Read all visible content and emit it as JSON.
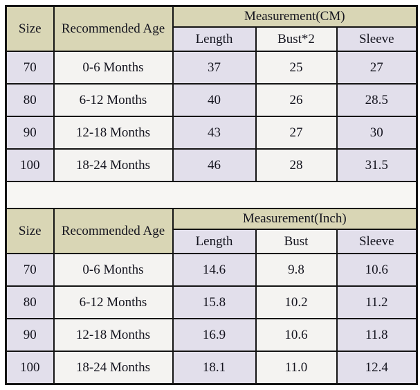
{
  "colors": {
    "header_bg": "#d9d6b5",
    "col_odd_bg": "#e2dfeb",
    "col_even_bg": "#f4f3f1",
    "gap_bg": "#f7f6f3",
    "border_color": "#141414",
    "text_color": "#14141e",
    "page_bg": "#ffffff"
  },
  "chart_data": [
    {
      "type": "table",
      "title": "Measurement(CM)",
      "header": {
        "size": "Size",
        "age": "Recommended Age",
        "measurement": "Measurement(CM)",
        "sub": [
          "Length",
          "Bust*2",
          "Sleeve"
        ]
      },
      "rows": [
        {
          "size": "70",
          "age": "0-6 Months",
          "values": [
            "37",
            "25",
            "27"
          ]
        },
        {
          "size": "80",
          "age": "6-12 Months",
          "values": [
            "40",
            "26",
            "28.5"
          ]
        },
        {
          "size": "90",
          "age": "12-18 Months",
          "values": [
            "43",
            "27",
            "30"
          ]
        },
        {
          "size": "100",
          "age": "18-24 Months",
          "values": [
            "46",
            "28",
            "31.5"
          ]
        }
      ]
    },
    {
      "type": "table",
      "title": "Measurement(Inch)",
      "header": {
        "size": "Size",
        "age": "Recommended Age",
        "measurement": "Measurement(Inch)",
        "sub": [
          "Length",
          "Bust",
          "Sleeve"
        ]
      },
      "rows": [
        {
          "size": "70",
          "age": "0-6 Months",
          "values": [
            "14.6",
            "9.8",
            "10.6"
          ]
        },
        {
          "size": "80",
          "age": "6-12 Months",
          "values": [
            "15.8",
            "10.2",
            "11.2"
          ]
        },
        {
          "size": "90",
          "age": "12-18 Months",
          "values": [
            "16.9",
            "10.6",
            "11.8"
          ]
        },
        {
          "size": "100",
          "age": "18-24 Months",
          "values": [
            "18.1",
            "11.0",
            "12.4"
          ]
        }
      ]
    }
  ]
}
